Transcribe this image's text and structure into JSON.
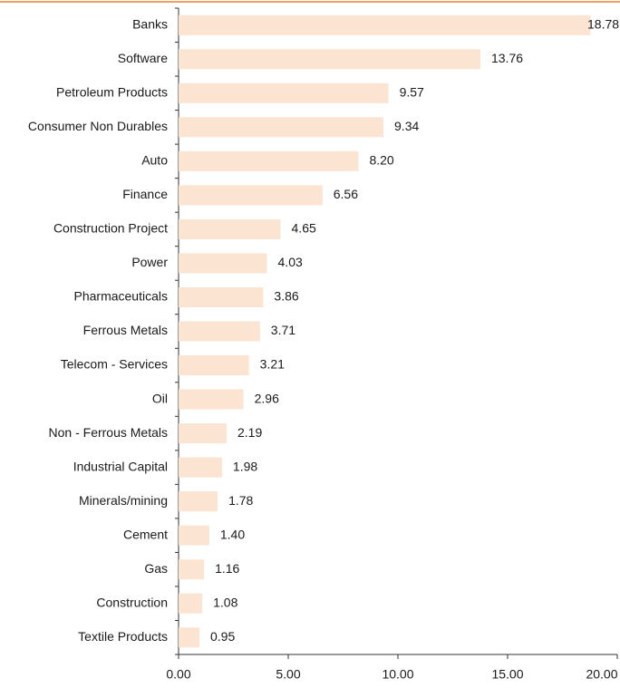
{
  "chart_data": {
    "type": "hbar",
    "categories": [
      "Banks",
      "Software",
      "Petroleum Products",
      "Consumer Non Durables",
      "Auto",
      "Finance",
      "Construction Project",
      "Power",
      "Pharmaceuticals",
      "Ferrous Metals",
      "Telecom - Services",
      "Oil",
      "Non - Ferrous Metals",
      "Industrial Capital",
      "Minerals/mining",
      "Cement",
      "Gas",
      "Construction",
      "Textile Products"
    ],
    "values": [
      18.78,
      13.76,
      9.57,
      9.34,
      8.2,
      6.56,
      4.65,
      4.03,
      3.86,
      3.71,
      3.21,
      2.96,
      2.19,
      1.98,
      1.78,
      1.4,
      1.16,
      1.08,
      0.95
    ],
    "value_labels": [
      "18.78",
      "13.76",
      "9.57",
      "9.34",
      "8.20",
      "6.56",
      "4.65",
      "4.03",
      "3.86",
      "3.71",
      "3.21",
      "2.96",
      "2.19",
      "1.98",
      "1.78",
      "1.40",
      "1.16",
      "1.08",
      "0.95"
    ],
    "color": "#fbe4d2",
    "xlim": [
      0,
      20
    ],
    "xticks": [
      {
        "value": 0,
        "label": "0.00"
      },
      {
        "value": 5,
        "label": "5.00"
      },
      {
        "value": 10,
        "label": "10.00"
      },
      {
        "value": 15,
        "label": "15.00"
      },
      {
        "value": 20,
        "label": "20.00"
      }
    ]
  }
}
